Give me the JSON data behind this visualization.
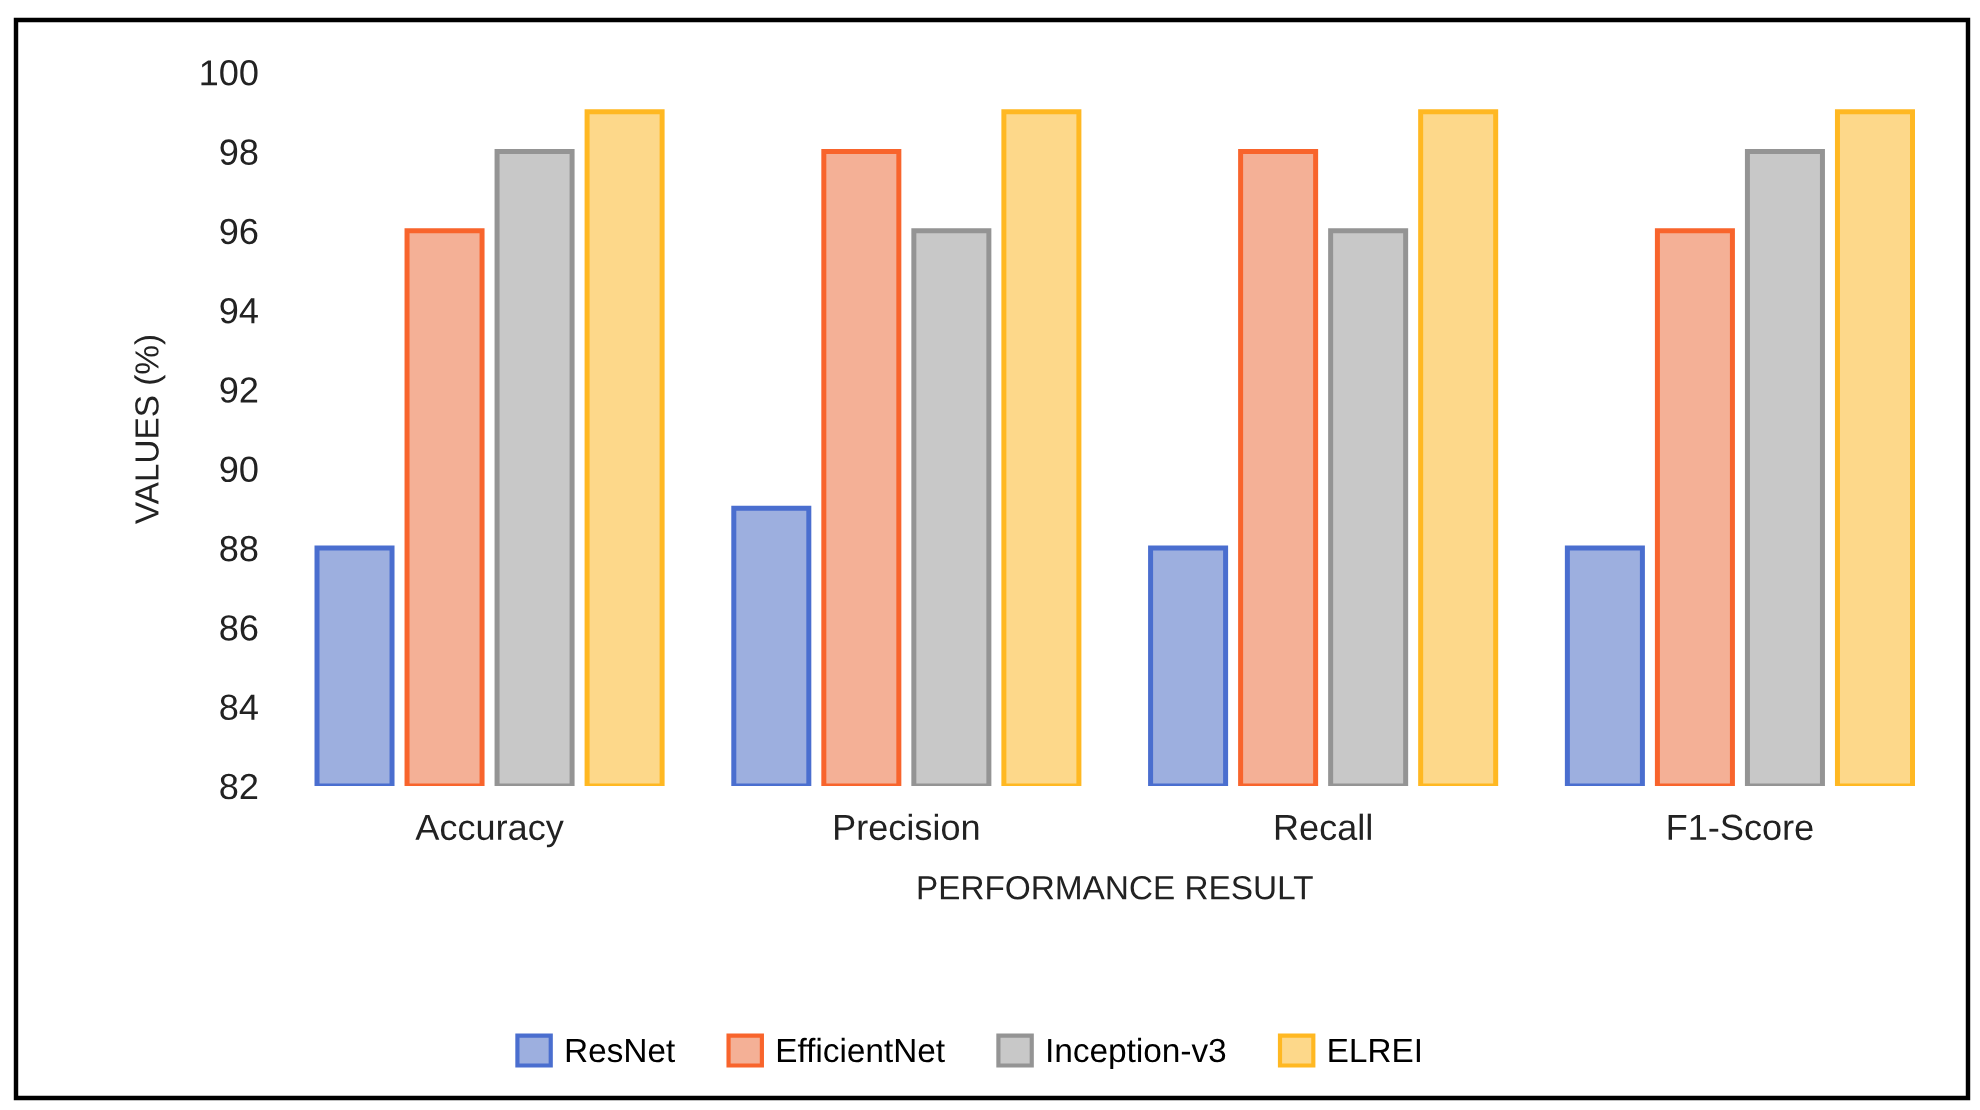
{
  "chart_data": {
    "type": "bar",
    "xlabel": "PERFORMANCE RESULT",
    "ylabel": "VALUES (%)",
    "categories": [
      "Accuracy",
      "Precision",
      "Recall",
      "F1-Score"
    ],
    "series": [
      {
        "name": "ResNet",
        "color": "#9dafdf",
        "values": [
          88,
          89,
          88,
          88
        ]
      },
      {
        "name": "EfficientNet",
        "color": "#f4b096",
        "values": [
          96,
          98,
          98,
          96
        ]
      },
      {
        "name": "Inception-v3",
        "color": "#c8c8c8",
        "values": [
          98,
          96,
          96,
          98
        ]
      },
      {
        "name": "ELREI",
        "color": "#fdd88a",
        "values": [
          99,
          99,
          99,
          99
        ]
      }
    ],
    "ylim": [
      82,
      100
    ],
    "yticks": [
      82,
      84,
      86,
      88,
      90,
      92,
      94,
      96,
      98,
      100
    ],
    "grid": false,
    "legend": "bottom"
  }
}
